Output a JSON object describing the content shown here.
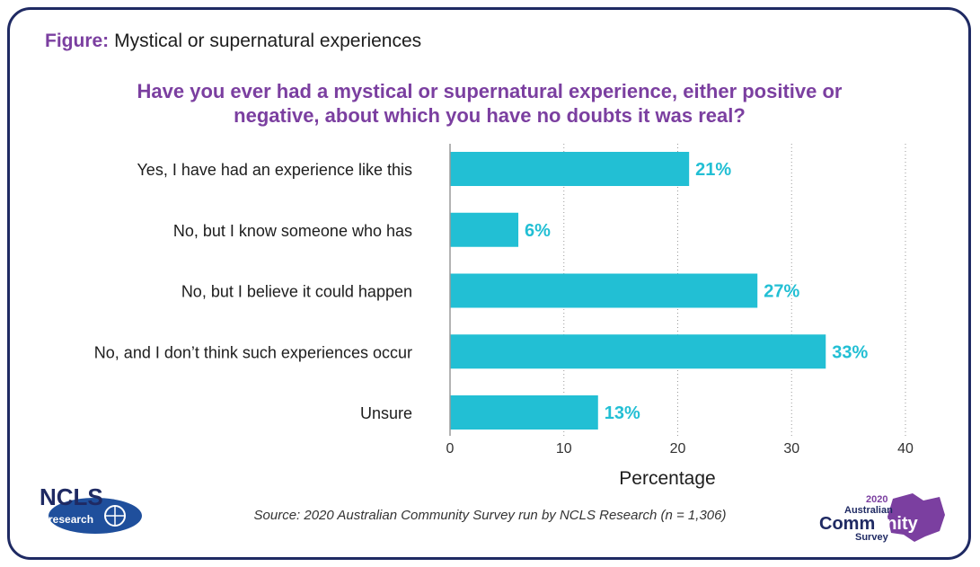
{
  "figure": {
    "label": "Figure:",
    "title": "Mystical or supernatural experiences"
  },
  "question": "Have you ever had a mystical or supernatural experience, either positive or negative, about which you have no doubts it was real?",
  "source": "Source: 2020 Australian Community Survey run by NCLS Research (n = 1,306)",
  "logos": {
    "ncls": {
      "top_text": "NCLS",
      "bottom_text": "research"
    },
    "acs": {
      "year": "2020",
      "line1": "Australian",
      "line2a": "Comm",
      "line2b": "unity",
      "line3": "Survey"
    }
  },
  "colors": {
    "bar": "#22bfd4",
    "label_value": "#22bfd4",
    "title_purple": "#7b3fa0",
    "frame_navy": "#1f2a63"
  },
  "chart_data": {
    "type": "bar",
    "orientation": "horizontal",
    "categories": [
      "Yes, I have had an experience like this",
      "No, but I know someone who has",
      "No, but I believe it could happen",
      "No, and I don’t think such experiences occur",
      "Unsure"
    ],
    "values": [
      21,
      6,
      27,
      33,
      13
    ],
    "value_labels": [
      "21%",
      "6%",
      "27%",
      "33%",
      "13%"
    ],
    "xlabel": "Percentage",
    "xlim": [
      0,
      40
    ],
    "xticks": [
      0,
      10,
      20,
      30,
      40
    ],
    "grid": "vertical dotted"
  }
}
